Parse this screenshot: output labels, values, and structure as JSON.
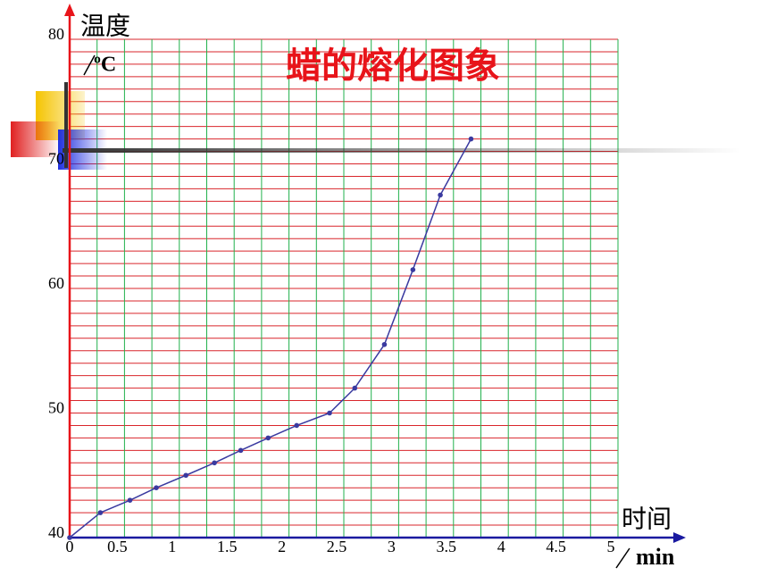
{
  "chart_data": {
    "type": "line",
    "title": "蜡的熔化图象",
    "y_label": "温度",
    "y_unit": "ºC",
    "x_label": "时间",
    "x_unit": "min",
    "x": [
      0,
      0.28,
      0.55,
      0.79,
      1.06,
      1.32,
      1.56,
      1.81,
      2.07,
      2.37,
      2.6,
      2.87,
      3.13,
      3.38,
      3.66
    ],
    "series": [
      {
        "color": "#3a3aa0",
        "values": [
          40,
          42,
          43,
          44,
          45,
          46,
          47,
          48,
          49,
          50,
          52,
          55.5,
          61.5,
          67.5,
          72
        ]
      }
    ],
    "xlim": [
      0,
      5
    ],
    "ylim": [
      40,
      80
    ],
    "xticks": [
      0,
      0.5,
      1,
      1.5,
      2,
      2.5,
      3,
      3.5,
      4,
      4.5,
      5
    ],
    "yticks": [
      40,
      50,
      60,
      70,
      80
    ],
    "xgrid": [
      0,
      0.25,
      0.5,
      0.75,
      1,
      1.25,
      1.5,
      1.75,
      2,
      2.25,
      2.5,
      2.75,
      3,
      3.25,
      3.5,
      3.75,
      4,
      4.25,
      4.5,
      4.75,
      5
    ],
    "ygrid": [
      40,
      41,
      42,
      43,
      44,
      45,
      46,
      47,
      48,
      49,
      50,
      51,
      52,
      53,
      54,
      55,
      56,
      57,
      58,
      59,
      60,
      61,
      62,
      63,
      64,
      65,
      66,
      67,
      68,
      69,
      70,
      71,
      72,
      73,
      74,
      75,
      76,
      77,
      78,
      79,
      80
    ],
    "grid": true,
    "x_grid_color": "#22b14c",
    "y_grid_color": "#d9262b"
  }
}
